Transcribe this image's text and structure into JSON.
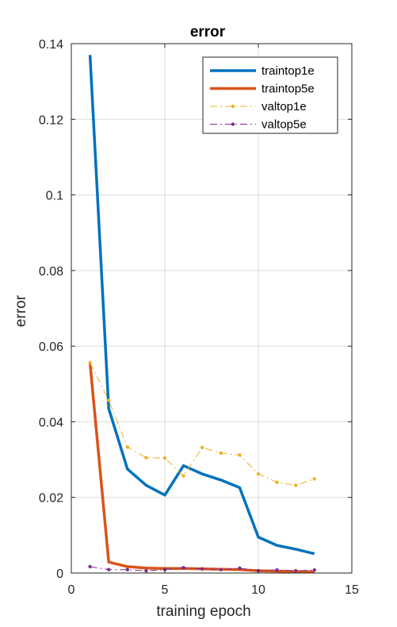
{
  "chart_data": {
    "type": "line",
    "title": "error",
    "xlabel": "training epoch",
    "ylabel": "error",
    "xlim": [
      0,
      15
    ],
    "ylim": [
      0,
      0.14
    ],
    "xticks": [
      0,
      5,
      10,
      15
    ],
    "yticks": [
      0,
      0.02,
      0.04,
      0.06,
      0.08,
      0.1,
      0.12,
      0.14
    ],
    "xtick_labels": [
      "0",
      "5",
      "10",
      "15"
    ],
    "ytick_labels": [
      "0",
      "0.02",
      "0.04",
      "0.06",
      "0.08",
      "0.1",
      "0.12",
      "0.14"
    ],
    "grid": true,
    "legend_position": "top-right",
    "x": [
      1,
      2,
      3,
      4,
      5,
      6,
      7,
      8,
      9,
      10,
      11,
      12,
      13
    ],
    "series": [
      {
        "name": "traintop1e",
        "color": "#0072BD",
        "style": "solid-thick",
        "values": [
          0.137,
          0.0435,
          0.0275,
          0.0232,
          0.0206,
          0.0284,
          0.0262,
          0.0246,
          0.0226,
          0.0095,
          0.0073,
          0.0063,
          0.0051
        ]
      },
      {
        "name": "traintop5e",
        "color": "#D95319",
        "style": "solid-thick",
        "values": [
          0.0556,
          0.0029,
          0.0017,
          0.0013,
          0.0012,
          0.0012,
          0.0011,
          0.001,
          0.0009,
          0.0006,
          0.0005,
          0.0004,
          0.0003
        ]
      },
      {
        "name": "valtop1e",
        "color": "#EDB120",
        "style": "dashed-dot",
        "values": [
          0.0556,
          0.0457,
          0.0333,
          0.0305,
          0.0304,
          0.0257,
          0.0332,
          0.0317,
          0.0312,
          0.0262,
          0.024,
          0.0232,
          0.0249
        ]
      },
      {
        "name": "valtop5e",
        "color": "#7E2F8E",
        "style": "dashed-dot",
        "values": [
          0.0017,
          0.0009,
          0.0009,
          0.0006,
          0.0009,
          0.0014,
          0.0011,
          0.0009,
          0.0013,
          0.0006,
          0.0008,
          0.0006,
          0.0008
        ]
      }
    ]
  }
}
